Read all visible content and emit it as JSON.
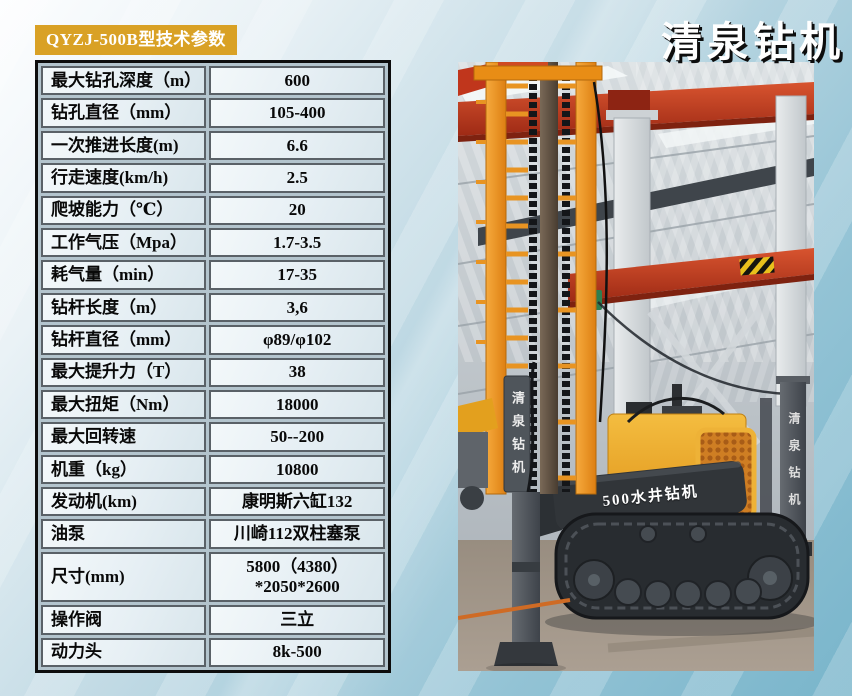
{
  "header": {
    "model_badge": "QYZJ-500B型技术参数",
    "brand_title": "清泉钻机"
  },
  "spec_table": {
    "rows": [
      {
        "label": "最大钻孔深度（m）",
        "value": "600"
      },
      {
        "label": "钻孔直径（mm）",
        "value": "105-400"
      },
      {
        "label": "一次推进长度(m)",
        "value": "6.6"
      },
      {
        "label": "行走速度(km/h)",
        "value": "2.5"
      },
      {
        "label": "爬坡能力（℃）",
        "value": "20"
      },
      {
        "label": "工作气压（Mpa）",
        "value": "1.7-3.5"
      },
      {
        "label": "耗气量（min）",
        "value": "17-35"
      },
      {
        "label": "钻杆长度（m）",
        "value": "3,6"
      },
      {
        "label": "钻杆直径（mm）",
        "value": "φ89/φ102"
      },
      {
        "label": "最大提升力（T）",
        "value": "38"
      },
      {
        "label": "最大扭矩（Nm）",
        "value": "18000"
      },
      {
        "label": "最大回转速",
        "value": "50--200"
      },
      {
        "label": "机重（kg）",
        "value": "10800"
      },
      {
        "label": "发动机(km)",
        "value": "康明斯六缸132"
      },
      {
        "label": "油泵",
        "value": "川崎112双柱塞泵"
      },
      {
        "label": "尺寸(mm)",
        "value": "5800（4380）\n*2050*2600"
      },
      {
        "label": "操作阀",
        "value": "三立"
      },
      {
        "label": "动力头",
        "value": "8k-500"
      }
    ]
  },
  "photo": {
    "banner_text": "500水井钻机",
    "mast_vertical_text": "清泉钻机",
    "post_vertical_text": "清泉钻机"
  },
  "colors": {
    "badge-bg": "#d9a125",
    "title-color": "#ffffff",
    "title-shadow": "#0d0d0d",
    "table-border": "#0d0d0d",
    "cell-border": "#5a6167",
    "gap-bg": "#b3c4cd",
    "crane-red": "#c8452a",
    "rig-orange": "#ef9d2d",
    "rig-yellow": "#eeb237",
    "steel-gray": "#494f55",
    "bg-1": "#fdfeff",
    "bg-2": "#79b5cb"
  }
}
